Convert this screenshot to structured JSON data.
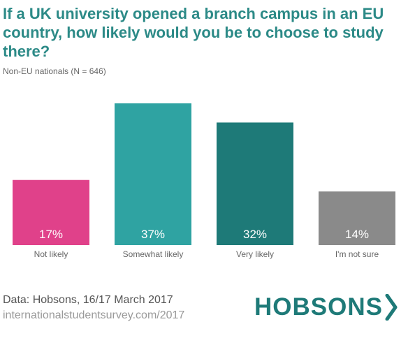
{
  "title": "If a UK university opened a branch campus in an EU country, how likely would you be to choose to study there?",
  "subtitle": "Non-EU nationals (N = 646)",
  "chart_data": {
    "type": "bar",
    "categories": [
      "Not likely",
      "Somewhat likely",
      "Very likely",
      "I'm not sure"
    ],
    "values": [
      17,
      37,
      32,
      14
    ],
    "data_labels": [
      "17%",
      "37%",
      "32%",
      "14%"
    ],
    "colors": [
      "#e0418a",
      "#2fa3a2",
      "#1e7a78",
      "#8a8a8a"
    ],
    "ylim": [
      0,
      37
    ],
    "xlabel": "",
    "ylabel": "",
    "grid": false,
    "legend": "none"
  },
  "footer": {
    "source": "Data: Hobsons, 16/17 March 2017",
    "url": "internationalstudentsurvey.com/2017"
  },
  "logo": {
    "text": "HOBSONS",
    "icon": "chevron-right-icon",
    "color": "#1e7a78"
  }
}
